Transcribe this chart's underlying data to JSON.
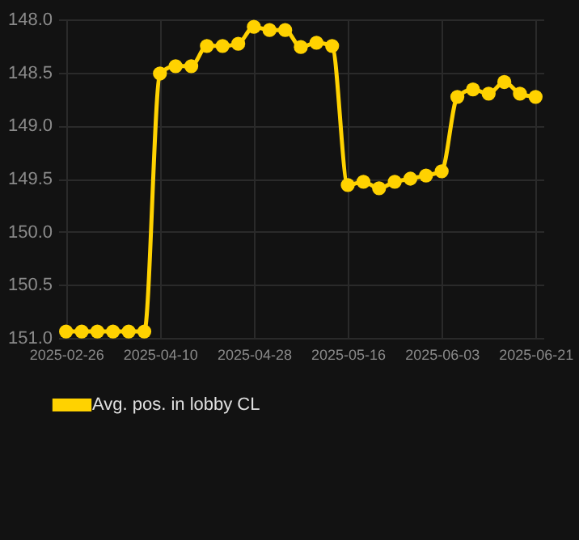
{
  "chart_data": {
    "type": "line",
    "categories": [
      "2025-02-26",
      null,
      null,
      null,
      null,
      null,
      "2025-04-10",
      null,
      null,
      null,
      null,
      null,
      "2025-04-28",
      null,
      null,
      null,
      null,
      null,
      "2025-05-16",
      null,
      null,
      null,
      null,
      null,
      "2025-06-03",
      null,
      null,
      null,
      null,
      null,
      "2025-06-21"
    ],
    "series": [
      {
        "name": "Avg. pos. in lobby CL",
        "color": "#ffd200",
        "values": [
          150.94,
          150.94,
          150.94,
          150.94,
          150.94,
          150.94,
          148.51,
          148.44,
          148.44,
          148.25,
          148.25,
          148.23,
          148.07,
          148.1,
          148.1,
          148.26,
          148.22,
          148.25,
          149.56,
          149.53,
          149.59,
          149.53,
          149.5,
          149.47,
          149.43,
          148.73,
          148.66,
          148.7,
          148.59,
          148.7,
          148.73
        ]
      }
    ],
    "ylim": [
      151.0,
      148.0
    ],
    "yticks": [
      {
        "value": 148,
        "label": "148.0"
      },
      {
        "value": 148.5,
        "label": "148.5"
      },
      {
        "value": 149,
        "label": "149.0"
      },
      {
        "value": 149.5,
        "label": "149.5"
      },
      {
        "value": 150,
        "label": "150.0"
      },
      {
        "value": 150.5,
        "label": "150.5"
      },
      {
        "value": 151,
        "label": "151.0"
      }
    ],
    "grid": true,
    "legend": "bottom",
    "marker": "circle",
    "line_style": "solid"
  }
}
